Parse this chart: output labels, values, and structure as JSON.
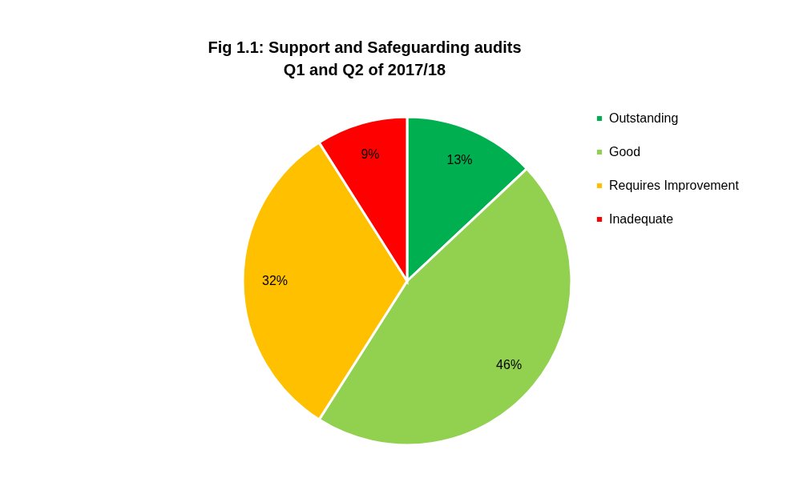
{
  "chart_data": {
    "type": "pie",
    "title": [
      "Fig 1.1: Support and Safeguarding audits",
      "Q1 and Q2 of 2017/18"
    ],
    "categories": [
      "Outstanding",
      "Good",
      "Requires Improvement",
      "Inadequate"
    ],
    "values": [
      13,
      46,
      32,
      9
    ],
    "colors": [
      "#00b050",
      "#92d050",
      "#ffc000",
      "#ff0000"
    ],
    "value_labels": [
      "13%",
      "46%",
      "32%",
      "9%"
    ],
    "legend": "right"
  }
}
